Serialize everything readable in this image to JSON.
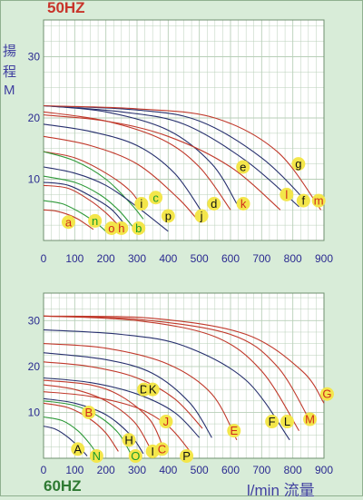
{
  "headers": {
    "top": "50HZ",
    "bottom": "60HZ",
    "y_label_chars": [
      "揚",
      "程",
      "M"
    ],
    "x_unit": "l/min 流量"
  },
  "colors": {
    "background": "#d8ecd8",
    "plot_bg": "#ffffff",
    "grid": "#b8cfb8",
    "axis_text": "#2a2a90",
    "title_50": "#c8342a",
    "title_60": "#2f7a33",
    "label_fill": "#f3e64a",
    "label_text_red": "#d02a1c",
    "label_text_black": "#111111",
    "label_text_green": "#1a9a2a"
  },
  "chart_data": [
    {
      "type": "line",
      "title": "50HZ",
      "xlabel": "l/min 流量",
      "ylabel": "揚程 M",
      "xlim": [
        0,
        900
      ],
      "ylim": [
        0,
        36
      ],
      "x_ticks": [
        0,
        100,
        200,
        300,
        400,
        500,
        600,
        700,
        800,
        900
      ],
      "y_ticks": [
        10,
        20,
        30
      ],
      "grid": true,
      "series": [
        {
          "name": "a",
          "color": "#c0392b",
          "points": [
            [
              0,
              5
            ],
            [
              40,
              4.8
            ],
            [
              80,
              4.2
            ],
            [
              110,
              3.5
            ],
            [
              140,
              2.5
            ],
            [
              160,
              1.8
            ]
          ]
        },
        {
          "name": "n",
          "color": "#2f9a3a",
          "points": [
            [
              0,
              6.5
            ],
            [
              60,
              6.0
            ],
            [
              120,
              4.5
            ],
            [
              170,
              2.8
            ],
            [
              200,
              1.5
            ]
          ]
        },
        {
          "name": "o",
          "color": "#c0392b",
          "points": [
            [
              0,
              9
            ],
            [
              80,
              8.5
            ],
            [
              150,
              6.5
            ],
            [
              200,
              4.5
            ],
            [
              240,
              2.5
            ]
          ]
        },
        {
          "name": "h",
          "color": "#27306e",
          "points": [
            [
              0,
              9.5
            ],
            [
              80,
              9
            ],
            [
              160,
              7
            ],
            [
              220,
              5
            ],
            [
              270,
              2
            ]
          ]
        },
        {
          "name": "b",
          "color": "#2f9a3a",
          "points": [
            [
              0,
              10.5
            ],
            [
              100,
              9.5
            ],
            [
              180,
              7.5
            ],
            [
              240,
              5
            ],
            [
              290,
              2
            ]
          ]
        },
        {
          "name": "i",
          "color": "#c0392b",
          "points": [
            [
              0,
              14.5
            ],
            [
              100,
              13.5
            ],
            [
              200,
              11
            ],
            [
              280,
              8
            ],
            [
              320,
              5
            ]
          ]
        },
        {
          "name": "c",
          "color": "#2f9a3a",
          "points": [
            [
              0,
              14.5
            ],
            [
              100,
              13
            ],
            [
              200,
              10
            ],
            [
              280,
              6
            ],
            [
              320,
              3.5
            ]
          ]
        },
        {
          "name": "p",
          "color": "#27306e",
          "points": [
            [
              0,
              12
            ],
            [
              100,
              11
            ],
            [
              200,
              9
            ],
            [
              300,
              5.5
            ],
            [
              400,
              1.5
            ]
          ]
        },
        {
          "name": "j",
          "color": "#c0392b",
          "points": [
            [
              0,
              17
            ],
            [
              150,
              15.5
            ],
            [
              300,
              12.5
            ],
            [
              430,
              7
            ],
            [
              500,
              3
            ]
          ]
        },
        {
          "name": "d",
          "color": "#27306e",
          "points": [
            [
              0,
              19
            ],
            [
              150,
              17.8
            ],
            [
              300,
              15.5
            ],
            [
              420,
              11
            ],
            [
              510,
              4.5
            ]
          ]
        },
        {
          "name": "k",
          "color": "#c0392b",
          "points": [
            [
              0,
              21
            ],
            [
              200,
              19.5
            ],
            [
              380,
              16.5
            ],
            [
              500,
              12
            ],
            [
              600,
              5
            ]
          ]
        },
        {
          "name": "e",
          "color": "#27306e",
          "points": [
            [
              0,
              22
            ],
            [
              200,
              21
            ],
            [
              400,
              18
            ],
            [
              540,
              12.5
            ],
            [
              620,
              6
            ]
          ]
        },
        {
          "name": "l",
          "color": "#c0392b",
          "points": [
            [
              0,
              20.5
            ],
            [
              200,
              19.5
            ],
            [
              400,
              17
            ],
            [
              600,
              12
            ],
            [
              760,
              5
            ]
          ]
        },
        {
          "name": "f",
          "color": "#27306e",
          "points": [
            [
              0,
              22
            ],
            [
              250,
              21
            ],
            [
              450,
              19
            ],
            [
              650,
              13
            ],
            [
              820,
              5.5
            ]
          ]
        },
        {
          "name": "g",
          "color": "#27306e",
          "points": [
            [
              0,
              22
            ],
            [
              300,
              21.3
            ],
            [
              500,
              19.5
            ],
            [
              700,
              13.5
            ],
            [
              850,
              6
            ]
          ]
        },
        {
          "name": "m",
          "color": "#c0392b",
          "points": [
            [
              0,
              22
            ],
            [
              300,
              21.5
            ],
            [
              550,
              20
            ],
            [
              750,
              14.5
            ],
            [
              890,
              5
            ]
          ]
        }
      ],
      "annotations": [
        {
          "text": "a",
          "x": 80,
          "y": 3.0,
          "color": "red"
        },
        {
          "text": "n",
          "x": 165,
          "y": 3.2,
          "color": "green"
        },
        {
          "text": "o",
          "x": 218,
          "y": 2.0,
          "color": "red"
        },
        {
          "text": "h",
          "x": 250,
          "y": 2.0,
          "color": "red"
        },
        {
          "text": "b",
          "x": 305,
          "y": 2.0,
          "color": "green"
        },
        {
          "text": "i",
          "x": 314,
          "y": 6.0,
          "color": "black"
        },
        {
          "text": "c",
          "x": 360,
          "y": 7.0,
          "color": "green"
        },
        {
          "text": "p",
          "x": 400,
          "y": 4.0,
          "color": "black"
        },
        {
          "text": "j",
          "x": 507,
          "y": 4.0,
          "color": "black"
        },
        {
          "text": "d",
          "x": 547,
          "y": 6.0,
          "color": "black"
        },
        {
          "text": "e",
          "x": 640,
          "y": 12.0,
          "color": "black"
        },
        {
          "text": "k",
          "x": 641,
          "y": 6.0,
          "color": "red"
        },
        {
          "text": "l",
          "x": 780,
          "y": 7.5,
          "color": "red"
        },
        {
          "text": "g",
          "x": 818,
          "y": 12.5,
          "color": "black"
        },
        {
          "text": "f",
          "x": 834,
          "y": 6.5,
          "color": "black"
        },
        {
          "text": "m",
          "x": 883,
          "y": 6.5,
          "color": "red"
        }
      ]
    },
    {
      "type": "line",
      "title": "60HZ",
      "xlabel": "l/min 流量",
      "xlim": [
        0,
        900
      ],
      "ylim": [
        0,
        36
      ],
      "x_ticks": [
        0,
        100,
        200,
        300,
        400,
        500,
        600,
        700,
        800,
        900
      ],
      "y_ticks": [
        10,
        20,
        30
      ],
      "grid": true,
      "series": [
        {
          "name": "A",
          "color": "#27306e",
          "points": [
            [
              0,
              7
            ],
            [
              40,
              6.3
            ],
            [
              80,
              4.5
            ],
            [
              120,
              2
            ],
            [
              140,
              0.5
            ]
          ]
        },
        {
          "name": "N",
          "color": "#2f9a3a",
          "points": [
            [
              0,
              9
            ],
            [
              60,
              8.2
            ],
            [
              110,
              6
            ],
            [
              150,
              3
            ],
            [
              170,
              1
            ]
          ]
        },
        {
          "name": "B",
          "color": "#c0392b",
          "points": [
            [
              0,
              12
            ],
            [
              80,
              11
            ],
            [
              150,
              8.5
            ],
            [
              200,
              5.5
            ],
            [
              240,
              1.5
            ]
          ]
        },
        {
          "name": "O",
          "color": "#2f9a3a",
          "points": [
            [
              0,
              12.5
            ],
            [
              100,
              11.5
            ],
            [
              180,
              9
            ],
            [
              240,
              5.5
            ],
            [
              280,
              1
            ]
          ]
        },
        {
          "name": "H",
          "color": "#27306e",
          "points": [
            [
              0,
              13
            ],
            [
              100,
              12
            ],
            [
              200,
              9.5
            ],
            [
              280,
              5
            ],
            [
              320,
              1
            ]
          ]
        },
        {
          "name": "I",
          "color": "#c0392b",
          "points": [
            [
              0,
              16
            ],
            [
              100,
              15
            ],
            [
              200,
              12.5
            ],
            [
              290,
              8
            ],
            [
              340,
              2.5
            ]
          ]
        },
        {
          "name": "C",
          "color": "#c0392b",
          "points": [
            [
              0,
              17
            ],
            [
              150,
              16
            ],
            [
              250,
              13.5
            ],
            [
              340,
              8.5
            ],
            [
              380,
              3
            ]
          ]
        },
        {
          "name": "P",
          "color": "#c0392b",
          "points": [
            [
              0,
              14.5
            ],
            [
              150,
              13.5
            ],
            [
              300,
              11
            ],
            [
              400,
              7
            ],
            [
              470,
              1.5
            ]
          ]
        },
        {
          "name": "D",
          "color": "#27306e",
          "points": [
            [
              0,
              17.5
            ],
            [
              150,
              16.5
            ],
            [
              300,
              14
            ],
            [
              420,
              10
            ],
            [
              500,
              4.5
            ]
          ]
        },
        {
          "name": "J",
          "color": "#c0392b",
          "points": [
            [
              0,
              21
            ],
            [
              150,
              20
            ],
            [
              300,
              17.5
            ],
            [
              420,
              13
            ],
            [
              510,
              6.5
            ]
          ]
        },
        {
          "name": "K",
          "color": "#27306e",
          "points": [
            [
              0,
              23
            ],
            [
              200,
              21.5
            ],
            [
              350,
              18.5
            ],
            [
              470,
              12
            ],
            [
              540,
              4.5
            ]
          ]
        },
        {
          "name": "E",
          "color": "#c0392b",
          "points": [
            [
              0,
              25
            ],
            [
              200,
              24
            ],
            [
              400,
              20.5
            ],
            [
              540,
              14
            ],
            [
              620,
              4
            ]
          ]
        },
        {
          "name": "F",
          "color": "#27306e",
          "points": [
            [
              0,
              28
            ],
            [
              250,
              27
            ],
            [
              450,
              24.5
            ],
            [
              650,
              17
            ],
            [
              790,
              4
            ]
          ]
        },
        {
          "name": "L",
          "color": "#c0392b",
          "points": [
            [
              0,
              31
            ],
            [
              300,
              30
            ],
            [
              550,
              26.5
            ],
            [
              700,
              19
            ],
            [
              820,
              6
            ]
          ]
        },
        {
          "name": "M",
          "color": "#c0392b",
          "points": [
            [
              0,
              31
            ],
            [
              300,
              30.3
            ],
            [
              600,
              27
            ],
            [
              750,
              20
            ],
            [
              860,
              7.5
            ]
          ]
        },
        {
          "name": "G",
          "color": "#c0392b",
          "points": [
            [
              0,
              31
            ],
            [
              350,
              30.5
            ],
            [
              650,
              27
            ],
            [
              830,
              19
            ],
            [
              900,
              12
            ]
          ]
        }
      ],
      "annotations": [
        {
          "text": "A",
          "x": 110,
          "y": 2.0,
          "color": "black"
        },
        {
          "text": "N",
          "x": 170,
          "y": 0.5,
          "color": "green"
        },
        {
          "text": "B",
          "x": 145,
          "y": 10.0,
          "color": "red"
        },
        {
          "text": "O",
          "x": 295,
          "y": 0.5,
          "color": "green"
        },
        {
          "text": "H",
          "x": 274,
          "y": 4.0,
          "color": "black"
        },
        {
          "text": "I",
          "x": 350,
          "y": 1.5,
          "color": "black"
        },
        {
          "text": "C",
          "x": 380,
          "y": 2.0,
          "color": "red"
        },
        {
          "text": "P",
          "x": 459,
          "y": 0.5,
          "color": "black"
        },
        {
          "text": "D",
          "x": 322,
          "y": 15.0,
          "color": "black"
        },
        {
          "text": "K",
          "x": 350,
          "y": 15.0,
          "color": "black"
        },
        {
          "text": "J",
          "x": 393,
          "y": 8.0,
          "color": "red"
        },
        {
          "text": "E",
          "x": 611,
          "y": 6.0,
          "color": "red"
        },
        {
          "text": "F",
          "x": 733,
          "y": 8.0,
          "color": "black"
        },
        {
          "text": "L",
          "x": 782,
          "y": 8.0,
          "color": "black"
        },
        {
          "text": "M",
          "x": 855,
          "y": 8.5,
          "color": "red"
        },
        {
          "text": "G",
          "x": 910,
          "y": 14.0,
          "color": "red"
        }
      ]
    }
  ]
}
